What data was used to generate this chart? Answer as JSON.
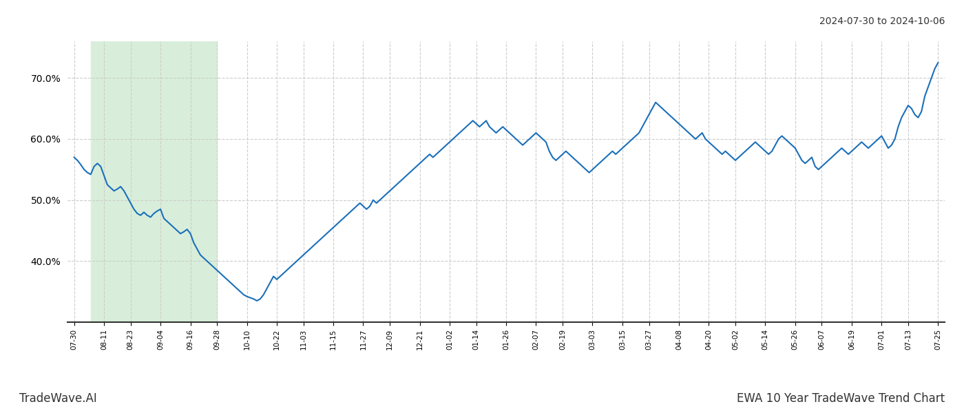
{
  "title_top_right": "2024-07-30 to 2024-10-06",
  "title_bottom_left": "TradeWave.AI",
  "title_bottom_right": "EWA 10 Year TradeWave Trend Chart",
  "line_color": "#1a6fba",
  "line_width": 1.5,
  "background_color": "#ffffff",
  "grid_color": "#cccccc",
  "grid_style": "--",
  "highlight_color": "#d8eeda",
  "ylim": [
    30,
    76
  ],
  "yticks": [
    40.0,
    50.0,
    60.0,
    70.0
  ],
  "xtick_labels": [
    "07-30",
    "08-11",
    "08-23",
    "09-04",
    "09-16",
    "09-28",
    "10-10",
    "10-22",
    "11-03",
    "11-15",
    "11-27",
    "12-09",
    "12-21",
    "01-02",
    "01-14",
    "01-26",
    "02-07",
    "02-19",
    "03-03",
    "03-15",
    "03-27",
    "04-08",
    "04-20",
    "05-02",
    "05-14",
    "05-26",
    "06-07",
    "06-19",
    "07-01",
    "07-13",
    "07-25"
  ],
  "highlight_xstart_label": "08-04",
  "highlight_xend_label": "09-28",
  "y_values": [
    57.0,
    56.5,
    55.8,
    55.0,
    54.5,
    54.2,
    55.5,
    56.0,
    55.5,
    54.0,
    52.5,
    52.0,
    51.5,
    51.8,
    52.2,
    51.5,
    50.5,
    49.5,
    48.5,
    47.8,
    47.5,
    48.0,
    47.5,
    47.2,
    47.8,
    48.2,
    48.5,
    47.0,
    46.5,
    46.0,
    45.5,
    45.0,
    44.5,
    44.8,
    45.2,
    44.5,
    43.0,
    42.0,
    41.0,
    40.5,
    40.0,
    39.5,
    39.0,
    38.5,
    38.0,
    37.5,
    37.0,
    36.5,
    36.0,
    35.5,
    35.0,
    34.5,
    34.2,
    34.0,
    33.8,
    33.5,
    33.8,
    34.5,
    35.5,
    36.5,
    37.5,
    37.0,
    37.5,
    38.0,
    38.5,
    39.0,
    39.5,
    40.0,
    40.5,
    41.0,
    41.5,
    42.0,
    42.5,
    43.0,
    43.5,
    44.0,
    44.5,
    45.0,
    45.5,
    46.0,
    46.5,
    47.0,
    47.5,
    48.0,
    48.5,
    49.0,
    49.5,
    49.0,
    48.5,
    49.0,
    50.0,
    49.5,
    50.0,
    50.5,
    51.0,
    51.5,
    52.0,
    52.5,
    53.0,
    53.5,
    54.0,
    54.5,
    55.0,
    55.5,
    56.0,
    56.5,
    57.0,
    57.5,
    57.0,
    57.5,
    58.0,
    58.5,
    59.0,
    59.5,
    60.0,
    60.5,
    61.0,
    61.5,
    62.0,
    62.5,
    63.0,
    62.5,
    62.0,
    62.5,
    63.0,
    62.0,
    61.5,
    61.0,
    61.5,
    62.0,
    61.5,
    61.0,
    60.5,
    60.0,
    59.5,
    59.0,
    59.5,
    60.0,
    60.5,
    61.0,
    60.5,
    60.0,
    59.5,
    58.0,
    57.0,
    56.5,
    57.0,
    57.5,
    58.0,
    57.5,
    57.0,
    56.5,
    56.0,
    55.5,
    55.0,
    54.5,
    55.0,
    55.5,
    56.0,
    56.5,
    57.0,
    57.5,
    58.0,
    57.5,
    58.0,
    58.5,
    59.0,
    59.5,
    60.0,
    60.5,
    61.0,
    62.0,
    63.0,
    64.0,
    65.0,
    66.0,
    65.5,
    65.0,
    64.5,
    64.0,
    63.5,
    63.0,
    62.5,
    62.0,
    61.5,
    61.0,
    60.5,
    60.0,
    60.5,
    61.0,
    60.0,
    59.5,
    59.0,
    58.5,
    58.0,
    57.5,
    58.0,
    57.5,
    57.0,
    56.5,
    57.0,
    57.5,
    58.0,
    58.5,
    59.0,
    59.5,
    59.0,
    58.5,
    58.0,
    57.5,
    58.0,
    59.0,
    60.0,
    60.5,
    60.0,
    59.5,
    59.0,
    58.5,
    57.5,
    56.5,
    56.0,
    56.5,
    57.0,
    55.5,
    55.0,
    55.5,
    56.0,
    56.5,
    57.0,
    57.5,
    58.0,
    58.5,
    58.0,
    57.5,
    58.0,
    58.5,
    59.0,
    59.5,
    59.0,
    58.5,
    59.0,
    59.5,
    60.0,
    60.5,
    59.5,
    58.5,
    59.0,
    60.0,
    62.0,
    63.5,
    64.5,
    65.5,
    65.0,
    64.0,
    63.5,
    64.5,
    67.0,
    68.5,
    70.0,
    71.5,
    72.5
  ]
}
